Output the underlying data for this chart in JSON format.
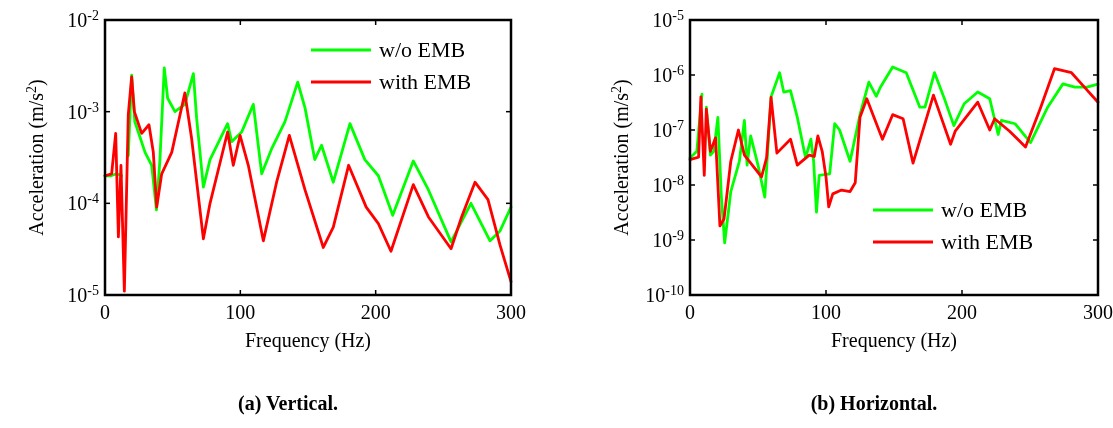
{
  "chart_data": [
    {
      "type": "line",
      "title": "(a) Vertical.",
      "xlabel": "Frequency (Hz)",
      "ylabel": "Acceleration (m/s$^{2}$)",
      "log": "y",
      "legend": "top right",
      "line_style": "solid",
      "marker": "none",
      "grid": false,
      "xlim": [
        0,
        300
      ],
      "xticks": [
        0,
        100,
        200,
        300
      ],
      "ylim": [
        1e-05,
        0.01
      ],
      "yticks": [
        {
          "value": 1e-05,
          "label": "10$^{-5}$"
        },
        {
          "value": 0.0001,
          "label": "10$^{-4}$"
        },
        {
          "value": 0.001,
          "label": "10$^{-3}$"
        },
        {
          "value": 0.01,
          "label": "10$^{-2}$"
        }
      ],
      "series": [
        {
          "name": "w/o EMB",
          "color": "#00ff00",
          "x": [
            0,
            4.4,
            8.6,
            12.3,
            14.8,
            17.2,
            19.7,
            22,
            29.6,
            34.5,
            38,
            40.6,
            43.8,
            46.3,
            51.7,
            59,
            65.3,
            67.7,
            72.7,
            77.6,
            90.6,
            93.6,
            101,
            109.6,
            115.8,
            123,
            133,
            142.4,
            147.8,
            155,
            160,
            168.7,
            181,
            192,
            202,
            212.6,
            227.8,
            239,
            255.7,
            270.4,
            284.5,
            291.9,
            300
          ],
          "values": [
            0.0002,
            0.0002,
            0.00021,
            0.0002,
            null,
            0.00033,
            0.0025,
            0.00078,
            0.00036,
            0.00026,
            8.5e-05,
            0.0003,
            0.003,
            0.0014,
            0.001,
            0.0012,
            0.0026,
            0.00085,
            0.00015,
            0.0003,
            0.00074,
            0.00047,
            0.0006,
            0.0012,
            0.00021,
            0.00039,
            0.00078,
            0.0021,
            0.0011,
            0.0003,
            0.00043,
            0.00017,
            0.00074,
            0.0003,
            0.0002,
            7.4e-05,
            0.00029,
            0.00014,
            3.8e-05,
            0.0001,
            3.9e-05,
            5e-05,
            9.1e-05
          ]
        },
        {
          "name": "with EMB",
          "color": "#ff0000",
          "x": [
            0,
            4.9,
            7.9,
            9.9,
            11.8,
            14.3,
            17.2,
            19.7,
            21.7,
            27.1,
            32.5,
            35.7,
            38.2,
            41.9,
            49.3,
            59,
            64,
            72.7,
            77.6,
            90.6,
            94.8,
            99.8,
            105.9,
            117,
            126.8,
            136.2,
            147.8,
            161.3,
            168.7,
            180,
            193,
            202,
            211.3,
            227.8,
            239,
            255.7,
            263.5,
            273.4,
            283,
            291.9,
            300
          ],
          "values": [
            0.0002,
            0.00021,
            0.00058,
            4.3e-05,
            0.00026,
            1.1e-05,
            0.00093,
            0.0024,
            0.001,
            0.00058,
            0.00072,
            0.00036,
            9.1e-05,
            0.00021,
            0.00036,
            0.0016,
            0.00051,
            4.1e-05,
            0.0001,
            0.0006,
            0.00026,
            0.00055,
            0.00026,
            3.9e-05,
            0.00017,
            0.00055,
            0.00014,
            3.3e-05,
            5.5e-05,
            0.00026,
            9.1e-05,
            6e-05,
            3e-05,
            0.00016,
            7.1e-05,
            3.2e-05,
            7.1e-05,
            0.00017,
            0.00011,
            3.5e-05,
            1.4e-05
          ]
        }
      ]
    },
    {
      "type": "line",
      "title": "(b) Horizontal.",
      "xlabel": "Frequency (Hz)",
      "ylabel": "Acceleration (m/s$^{2}$)",
      "log": "y",
      "legend": "bottom right",
      "line_style": "solid",
      "marker": "none",
      "grid": false,
      "xlim": [
        0,
        300
      ],
      "xticks": [
        0,
        100,
        200,
        300
      ],
      "ylim": [
        1e-10,
        1e-05
      ],
      "yticks": [
        {
          "value": 1e-10,
          "label": "10$^{-10}$"
        },
        {
          "value": 1e-09,
          "label": "10$^{-9}$"
        },
        {
          "value": 1e-08,
          "label": "10$^{-8}$"
        },
        {
          "value": 1e-07,
          "label": "10$^{-7}$"
        },
        {
          "value": 1e-06,
          "label": "10$^{-6}$"
        },
        {
          "value": 1e-05,
          "label": "10$^{-5}$"
        }
      ],
      "series": [
        {
          "name": "w/o EMB",
          "color": "#00ff00",
          "x": [
            0,
            5,
            8.8,
            10.5,
            12,
            15,
            17.5,
            20.5,
            23,
            25.5,
            30,
            36.3,
            40,
            42,
            44.6,
            50,
            55,
            59.6,
            65.9,
            68.9,
            73.9,
            78.9,
            85,
            88.9,
            90.9,
            93,
            95,
            102.7,
            106.4,
            110,
            117.7,
            125,
            131.5,
            137,
            140,
            149,
            159,
            169,
            172.8,
            179.8,
            186.6,
            194,
            201.6,
            211.6,
            220.4,
            226.6,
            229,
            239,
            250.4,
            263,
            274.2,
            283,
            291.8,
            300
          ],
          "values": [
            3.1e-08,
            4.1e-08,
            4.5e-07,
            null,
            2.6e-07,
            3.5e-08,
            4.1e-08,
            1.7e-07,
            6.5e-09,
            8.9e-10,
            7.6e-09,
            2.7e-08,
            1.5e-07,
            2.3e-08,
            7.8e-08,
            2.3e-08,
            6e-09,
            4e-07,
            1.1e-06,
            4.9e-07,
            5.2e-07,
            1.7e-07,
            3.1e-08,
            6.8e-08,
            2.7e-08,
            3.2e-09,
            1.5e-08,
            1.6e-08,
            1.3e-07,
            1e-07,
            2.7e-08,
            1.9e-07,
            7.4e-07,
            4.1e-07,
            6e-07,
            1.4e-06,
            1.1e-06,
            2.6e-07,
            2.6e-07,
            1.1e-06,
            4e-07,
            1.2e-07,
            3e-07,
            4.9e-07,
            3.7e-07,
            8.3e-08,
            1.5e-07,
            1.3e-07,
            5.9e-08,
            2.6e-07,
            6.9e-07,
            6e-07,
            6e-07,
            6.8e-07
          ]
        },
        {
          "name": "with EMB",
          "color": "#ff0000",
          "x": [
            0,
            6.3,
            8,
            10.5,
            12,
            15,
            18.8,
            22,
            25,
            30,
            35.6,
            40,
            52.6,
            56.3,
            59.6,
            63.9,
            73.9,
            78.9,
            87.7,
            91.4,
            94,
            97.2,
            100,
            102,
            105,
            111.4,
            117.7,
            121.5,
            125,
            130,
            141.5,
            149,
            156.7,
            164,
            179,
            191.6,
            195,
            211.6,
            220.4,
            224,
            235,
            246.7,
            257.9,
            268,
            280.5,
            286.7,
            300
          ],
          "values": [
            2.9e-08,
            3.2e-08,
            4e-07,
            1.5e-08,
            2.4e-07,
            4.1e-08,
            7.2e-08,
            1.8e-09,
            2.4e-09,
            2.7e-08,
            1e-07,
            3.5e-08,
            1.4e-08,
            3.1e-08,
            3.9e-07,
            3.8e-08,
            6.8e-08,
            2.3e-08,
            3.5e-08,
            3.3e-08,
            7.8e-08,
            4.1e-08,
            1.4e-08,
            4e-09,
            6.9e-09,
            8.1e-09,
            7.6e-09,
            1.1e-08,
            1.7e-07,
            3.7e-07,
            6.8e-08,
            1.9e-07,
            1.6e-07,
            2.5e-08,
            4.3e-07,
            5.5e-08,
            9.5e-08,
            3.2e-07,
            1e-07,
            1.6e-07,
            9.5e-08,
            4.9e-08,
            2.6e-07,
            1.3e-06,
            1.1e-06,
            7.4e-07,
            3.2e-07
          ]
        }
      ]
    }
  ]
}
